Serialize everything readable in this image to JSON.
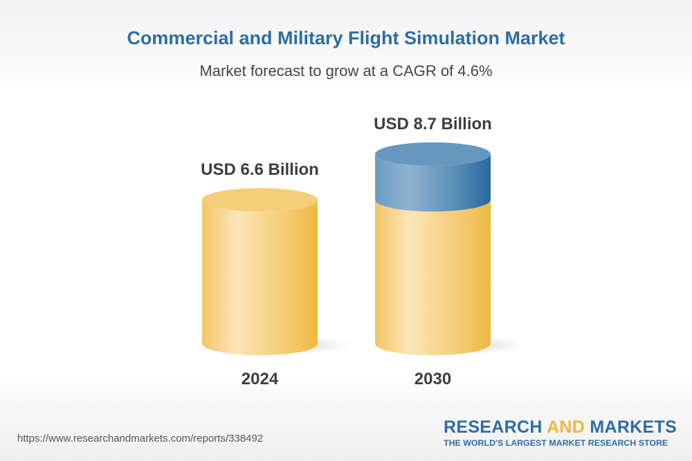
{
  "title": "Commercial and Military Flight Simulation Market",
  "subtitle": "Market forecast to grow at a CAGR of 4.6%",
  "chart_data": {
    "type": "bar",
    "style": "3d-cylinder",
    "categories": [
      "2024",
      "2030"
    ],
    "values": [
      6.6,
      8.7
    ],
    "data_labels": [
      "USD 6.6 Billion",
      "USD 8.7 Billion"
    ],
    "unit": "USD Billion",
    "colors": {
      "base": "#f2c35a",
      "growth": "#3a78aa"
    }
  },
  "footer": {
    "url": "https://www.researchandmarkets.com/reports/338492",
    "logo_part1": "RESEARCH ",
    "logo_part2": "AND",
    "logo_part3": " MARKETS",
    "tagline": "THE WORLD'S LARGEST MARKET RESEARCH STORE"
  }
}
